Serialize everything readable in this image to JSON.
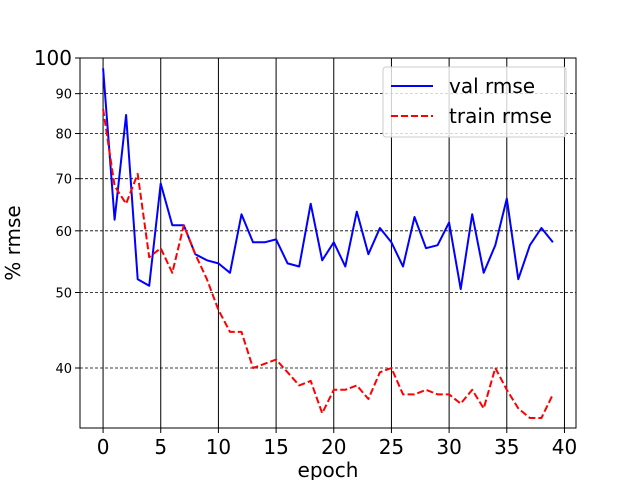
{
  "chart_data": {
    "type": "line",
    "title": "",
    "xlabel": "epoch",
    "ylabel": "% rmse",
    "yscale": "log",
    "xlim": [
      -2,
      41
    ],
    "ylim": [
      33.5,
      100
    ],
    "xticks": [
      0,
      5,
      10,
      15,
      20,
      25,
      30,
      35,
      40
    ],
    "yticks": [
      40,
      50,
      60,
      70,
      80,
      90,
      100
    ],
    "grid": {
      "x": true,
      "x_style": "solid",
      "y": true,
      "y_style": "dashed"
    },
    "legend": "top-right",
    "x": [
      0,
      1,
      2,
      3,
      4,
      5,
      6,
      7,
      8,
      9,
      10,
      11,
      12,
      13,
      14,
      15,
      16,
      17,
      18,
      19,
      20,
      21,
      22,
      23,
      24,
      25,
      26,
      27,
      28,
      29,
      30,
      31,
      32,
      33,
      34,
      35,
      36,
      37,
      38,
      39
    ],
    "series": [
      {
        "name": "val rmse",
        "color": "#0000ff",
        "style": "solid",
        "values": [
          97,
          62,
          84.5,
          52,
          51,
          69,
          61,
          61,
          56,
          55,
          54.5,
          53,
          63,
          58,
          58,
          58.5,
          54.5,
          54,
          65,
          55,
          58,
          54,
          63.5,
          56,
          60.5,
          58,
          54,
          62.5,
          57,
          57.5,
          61.5,
          50.5,
          63,
          53,
          57.5,
          66,
          52,
          57.5,
          60.5,
          58
        ]
      },
      {
        "name": "train rmse",
        "color": "#ff0000",
        "style": "dashed",
        "values": [
          86,
          68.5,
          65,
          71,
          55.5,
          57,
          53,
          61,
          56,
          52,
          47.5,
          44.5,
          44.5,
          40,
          40.5,
          41,
          39.5,
          38,
          38.5,
          35,
          37.5,
          37.5,
          38,
          36.5,
          39.5,
          40,
          37,
          37,
          37.5,
          37,
          37,
          36,
          37.5,
          35.5,
          40,
          37.5,
          35.5,
          34.5,
          34.5,
          37
        ]
      }
    ]
  }
}
